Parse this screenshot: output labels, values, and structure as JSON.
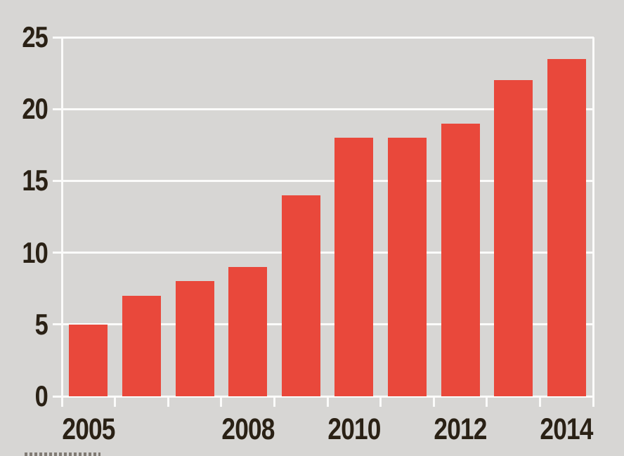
{
  "chart_data": {
    "type": "bar",
    "title": "",
    "xlabel": "",
    "ylabel": "",
    "categories": [
      "2005",
      "2006",
      "2007",
      "2008",
      "2009",
      "2010",
      "2011",
      "2012",
      "2013",
      "2014"
    ],
    "values": [
      5,
      7,
      8,
      9,
      14,
      18,
      18,
      19,
      22,
      23.5
    ],
    "ylim": [
      0,
      25
    ],
    "yticks": [
      0,
      5,
      10,
      15,
      20,
      25
    ],
    "ytick_labels": [
      "0",
      "5",
      "10",
      "15",
      "20",
      "25"
    ],
    "x_axis": {
      "shown_labels": [
        {
          "label": "2005",
          "bar_index": 0
        },
        {
          "label": "2008",
          "bar_index": 3
        },
        {
          "label": "2010",
          "bar_index": 5
        },
        {
          "label": "2012",
          "bar_index": 7
        },
        {
          "label": "2014",
          "bar_index": 9
        }
      ]
    },
    "legend": "none",
    "grid": "horizontal-white-gridlines",
    "colors": {
      "background": "#d7d6d4",
      "bar": "#e9483b",
      "gridline": "#fbfbfa",
      "label_text": "#2a2115"
    }
  }
}
